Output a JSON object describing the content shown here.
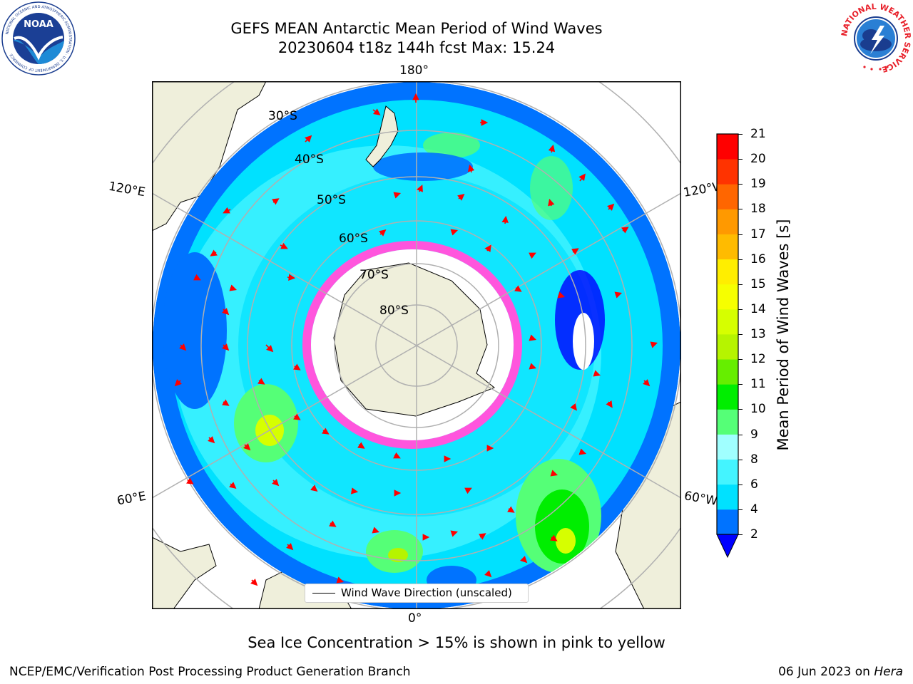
{
  "title": {
    "line1": "GEFS MEAN Antarctic Mean Period of Wind Waves",
    "line2": "20230604 t18z 144h fcst   Max: 15.24"
  },
  "logos": {
    "left": "noaa-logo",
    "right": "nws-logo",
    "left_text": "NOAA",
    "left_ring_text": "NATIONAL OCEANIC AND ATMOSPHERIC ADMINISTRATION · U.S. DEPARTMENT OF COMMERCE",
    "right_ring_text": "NATIONAL WEATHER SERVICE"
  },
  "map": {
    "projection": "south-polar-stereographic",
    "lon_labels": {
      "top": "180°",
      "bottom": "0°",
      "left_upper": "120°E",
      "right_upper": "120°W",
      "left_lower": "60°E",
      "right_lower": "60°W"
    },
    "lat_labels": [
      "30°S",
      "40°S",
      "50°S",
      "60°S",
      "70°S",
      "80°S"
    ],
    "legend_label": "Wind Wave Direction (unscaled)"
  },
  "colorbar": {
    "label": "Mean Period of Wind Waves [s]",
    "ticks": [
      "2",
      "4",
      "6",
      "8",
      "9",
      "10",
      "11",
      "12",
      "13",
      "14",
      "15",
      "16",
      "17",
      "18",
      "19",
      "20",
      "21"
    ],
    "colors": [
      "#0073ff",
      "#00e1ff",
      "#44f4ff",
      "#a0ffff",
      "#55ff77",
      "#00ee00",
      "#66ee00",
      "#b6f400",
      "#d6ff00",
      "#f6ff00",
      "#ffee00",
      "#ffbb00",
      "#ff9900",
      "#ff6600",
      "#ff3300",
      "#ff0000"
    ],
    "under_color": "#0000ff"
  },
  "footnote": "Sea Ice Concentration > 15% is shown in pink to yellow",
  "credit": {
    "left": "NCEP/EMC/Verification Post Processing Product Generation Branch",
    "right_date": "06 Jun 2023 on ",
    "right_host": "Hera"
  }
}
